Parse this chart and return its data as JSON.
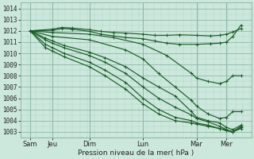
{
  "title": "",
  "xlabel": "Pression niveau de la mer( hPa )",
  "ylabel": "",
  "bg_color": "#cce8dc",
  "grid_minor_color": "#b0d4c4",
  "grid_major_color": "#90b8a8",
  "line_color": "#1a5c28",
  "ylim": [
    1002.5,
    1014.5
  ],
  "xlim": [
    -0.05,
    5.55
  ],
  "yticks": [
    1003,
    1004,
    1005,
    1006,
    1007,
    1008,
    1009,
    1010,
    1011,
    1012,
    1013,
    1014
  ],
  "day_labels": [
    "Sam",
    "Jeu",
    "Dim",
    "Lun",
    "Mar",
    "Mer"
  ],
  "day_positions": [
    0.18,
    0.72,
    1.62,
    2.92,
    4.22,
    4.95
  ],
  "lines": [
    {
      "x": [
        0.18,
        0.72,
        0.95,
        1.2,
        1.62,
        1.9,
        2.2,
        2.5,
        2.92,
        3.2,
        3.5,
        3.8,
        4.22,
        4.55,
        4.78,
        4.95,
        5.1,
        5.3
      ],
      "y": [
        1012.0,
        1012.15,
        1012.3,
        1012.25,
        1012.1,
        1011.95,
        1011.85,
        1011.8,
        1011.7,
        1011.6,
        1011.6,
        1011.65,
        1011.6,
        1011.55,
        1011.6,
        1011.7,
        1011.9,
        1012.2
      ]
    },
    {
      "x": [
        0.18,
        0.72,
        0.95,
        1.2,
        1.62,
        1.9,
        2.2,
        2.5,
        2.92,
        3.2,
        3.5,
        3.8,
        4.22,
        4.55,
        4.78,
        4.95,
        5.1,
        5.3
      ],
      "y": [
        1012.0,
        1012.05,
        1012.2,
        1012.15,
        1011.95,
        1011.7,
        1011.55,
        1011.4,
        1011.3,
        1011.1,
        1010.9,
        1010.8,
        1010.8,
        1010.85,
        1010.9,
        1011.0,
        1011.5,
        1012.5
      ]
    },
    {
      "x": [
        0.18,
        0.72,
        1.62,
        2.2,
        2.92,
        3.5,
        4.1,
        4.22,
        4.5,
        4.78,
        4.95,
        5.1,
        5.3
      ],
      "y": [
        1012.0,
        1011.85,
        1011.7,
        1011.4,
        1010.8,
        1009.8,
        1008.2,
        1007.8,
        1007.5,
        1007.3,
        1007.5,
        1008.0,
        1008.0
      ]
    },
    {
      "x": [
        0.18,
        0.72,
        1.62,
        2.5,
        2.92,
        3.3,
        3.7,
        4.1,
        4.22,
        4.5,
        4.78,
        4.95,
        5.1,
        5.3
      ],
      "y": [
        1012.0,
        1011.5,
        1011.2,
        1010.3,
        1009.5,
        1008.2,
        1007.0,
        1005.8,
        1005.3,
        1004.6,
        1004.2,
        1004.3,
        1004.8,
        1004.8
      ]
    },
    {
      "x": [
        0.18,
        0.55,
        0.72,
        1.0,
        1.62,
        2.0,
        2.5,
        2.92,
        3.3,
        3.7,
        4.1,
        4.22,
        4.5,
        4.78,
        4.95,
        5.1,
        5.3
      ],
      "y": [
        1012.0,
        1011.35,
        1011.1,
        1010.7,
        1010.1,
        1009.6,
        1008.8,
        1007.8,
        1007.0,
        1006.2,
        1004.8,
        1004.3,
        1004.0,
        1003.8,
        1003.4,
        1003.2,
        1003.6
      ]
    },
    {
      "x": [
        0.18,
        0.55,
        0.72,
        1.0,
        1.62,
        2.0,
        2.5,
        2.92,
        3.3,
        3.7,
        4.1,
        4.22,
        4.5,
        4.78,
        4.95,
        5.1,
        5.3
      ],
      "y": [
        1012.0,
        1011.2,
        1010.9,
        1010.5,
        1009.8,
        1009.2,
        1008.2,
        1007.0,
        1006.0,
        1005.2,
        1004.5,
        1004.2,
        1003.9,
        1003.5,
        1003.2,
        1003.0,
        1003.5
      ]
    },
    {
      "x": [
        0.18,
        0.55,
        0.72,
        1.0,
        1.62,
        2.0,
        2.5,
        2.92,
        3.3,
        3.7,
        4.1,
        4.22,
        4.5,
        4.78,
        4.95,
        5.1,
        5.3
      ],
      "y": [
        1012.0,
        1010.8,
        1010.5,
        1010.0,
        1009.2,
        1008.5,
        1007.4,
        1006.0,
        1005.0,
        1004.3,
        1004.0,
        1003.8,
        1003.6,
        1003.3,
        1003.1,
        1003.0,
        1003.4
      ]
    },
    {
      "x": [
        0.18,
        0.55,
        0.72,
        1.0,
        1.62,
        2.0,
        2.5,
        2.92,
        3.3,
        3.7,
        4.1,
        4.22,
        4.5,
        4.78,
        4.95,
        5.1,
        5.3
      ],
      "y": [
        1012.0,
        1010.5,
        1010.2,
        1009.7,
        1008.8,
        1008.0,
        1006.8,
        1005.5,
        1004.6,
        1004.0,
        1003.8,
        1003.7,
        1003.5,
        1003.3,
        1003.2,
        1003.0,
        1003.3
      ]
    }
  ]
}
